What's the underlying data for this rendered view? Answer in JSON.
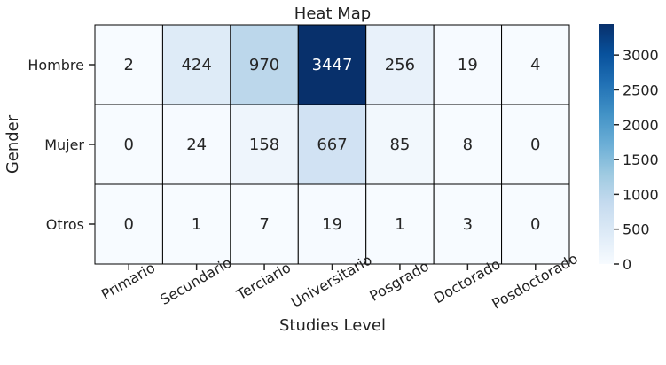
{
  "chart_data": {
    "type": "heatmap",
    "title": "Heat Map",
    "xlabel": "Studies Level",
    "ylabel": "Gender",
    "x_categories": [
      "Primario",
      "Secundario",
      "Terciario",
      "Universitario",
      "Posgrado",
      "Doctorado",
      "Posdoctorado"
    ],
    "y_categories": [
      "Hombre",
      "Mujer",
      "Otros"
    ],
    "values": [
      [
        2,
        424,
        970,
        3447,
        256,
        19,
        4
      ],
      [
        0,
        24,
        158,
        667,
        85,
        8,
        0
      ],
      [
        0,
        1,
        7,
        19,
        1,
        3,
        0
      ]
    ],
    "colormap": "Blues",
    "colorbar": {
      "range": [
        0,
        3447
      ],
      "ticks": [
        0,
        500,
        1000,
        1500,
        2000,
        2500,
        3000
      ]
    },
    "annotations": true,
    "cell_border_color": "#000000"
  }
}
